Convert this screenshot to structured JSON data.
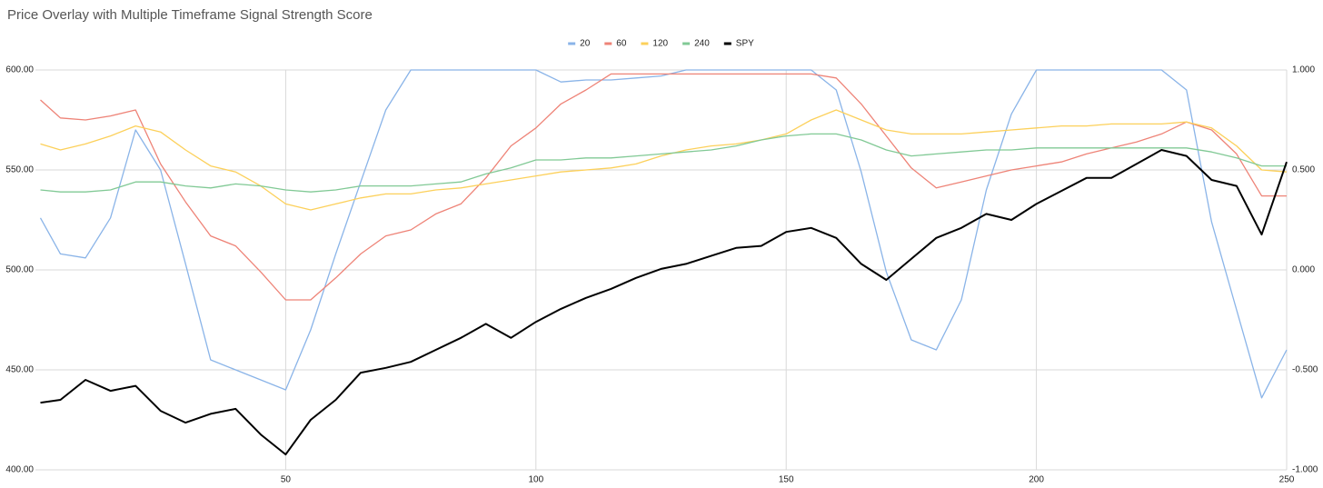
{
  "chart_data": {
    "type": "line",
    "title": "Price Overlay with Multiple Timeframe Signal Strength Score",
    "x": [
      1,
      5,
      10,
      15,
      20,
      25,
      30,
      35,
      40,
      45,
      50,
      55,
      60,
      65,
      70,
      75,
      80,
      85,
      90,
      95,
      100,
      105,
      110,
      115,
      120,
      125,
      130,
      135,
      140,
      145,
      150,
      155,
      160,
      165,
      170,
      175,
      180,
      185,
      190,
      195,
      200,
      205,
      210,
      215,
      220,
      225,
      230,
      235,
      240,
      245,
      250
    ],
    "series": [
      {
        "name": "20",
        "color": "#8ab4e8",
        "axis": "y2",
        "values": [
          0.26,
          0.08,
          0.06,
          0.26,
          0.7,
          0.5,
          0.03,
          -0.45,
          -0.5,
          -0.55,
          -0.6,
          -0.3,
          0.08,
          0.44,
          0.8,
          1,
          1,
          1,
          1,
          1,
          1,
          0.94,
          0.95,
          0.95,
          0.96,
          0.97,
          1,
          1,
          1,
          1,
          1,
          1,
          0.9,
          0.49,
          -0.01,
          -0.35,
          -0.4,
          -0.15,
          0.4,
          0.78,
          1,
          1,
          1,
          1,
          1,
          1,
          0.9,
          0.24,
          -0.2,
          -0.64,
          -0.4
        ]
      },
      {
        "name": "60",
        "color": "#ee8377",
        "axis": "y2",
        "values": [
          0.85,
          0.76,
          0.75,
          0.77,
          0.8,
          0.53,
          0.34,
          0.17,
          0.12,
          -0.01,
          -0.15,
          -0.15,
          -0.04,
          0.08,
          0.17,
          0.2,
          0.28,
          0.33,
          0.46,
          0.62,
          0.71,
          0.83,
          0.9,
          0.98,
          0.98,
          0.98,
          0.98,
          0.98,
          0.98,
          0.98,
          0.98,
          0.98,
          0.96,
          0.83,
          0.67,
          0.51,
          0.41,
          0.44,
          0.47,
          0.5,
          0.52,
          0.54,
          0.58,
          0.61,
          0.64,
          0.68,
          0.74,
          0.7,
          0.58,
          0.37,
          0.37
        ]
      },
      {
        "name": "120",
        "color": "#fcd05a",
        "axis": "y2",
        "values": [
          0.63,
          0.6,
          0.63,
          0.67,
          0.72,
          0.69,
          0.6,
          0.52,
          0.49,
          0.42,
          0.33,
          0.3,
          0.33,
          0.36,
          0.38,
          0.38,
          0.4,
          0.41,
          0.43,
          0.45,
          0.47,
          0.49,
          0.5,
          0.51,
          0.53,
          0.57,
          0.6,
          0.62,
          0.63,
          0.65,
          0.68,
          0.75,
          0.8,
          0.75,
          0.7,
          0.68,
          0.68,
          0.68,
          0.69,
          0.7,
          0.71,
          0.72,
          0.72,
          0.73,
          0.73,
          0.73,
          0.74,
          0.71,
          0.62,
          0.5,
          0.49
        ]
      },
      {
        "name": "240",
        "color": "#81c995",
        "axis": "y2",
        "values": [
          0.4,
          0.39,
          0.39,
          0.4,
          0.44,
          0.44,
          0.42,
          0.41,
          0.43,
          0.42,
          0.4,
          0.39,
          0.4,
          0.42,
          0.42,
          0.42,
          0.43,
          0.44,
          0.48,
          0.51,
          0.55,
          0.55,
          0.56,
          0.56,
          0.57,
          0.58,
          0.59,
          0.6,
          0.62,
          0.65,
          0.67,
          0.68,
          0.68,
          0.65,
          0.6,
          0.57,
          0.58,
          0.59,
          0.6,
          0.6,
          0.61,
          0.61,
          0.61,
          0.61,
          0.61,
          0.61,
          0.61,
          0.59,
          0.56,
          0.52,
          0.52
        ]
      },
      {
        "name": "SPY",
        "color": "#000000",
        "values": [
          433.6,
          435,
          445,
          439.5,
          442,
          429.5,
          423.6,
          428,
          430.5,
          417.7,
          407.7,
          425,
          435,
          448.6,
          451,
          454,
          460,
          466,
          473,
          466,
          474,
          480.5,
          486,
          490.5,
          496,
          500.5,
          503,
          507,
          511,
          512,
          519,
          521,
          516,
          503,
          495,
          505.5,
          516,
          521,
          528,
          525,
          533,
          539.5,
          546,
          546,
          553,
          560,
          557,
          545,
          542,
          517.7,
          554
        ]
      }
    ],
    "xlim": [
      0,
      250
    ],
    "xticks": [
      50,
      100,
      150,
      200,
      250
    ],
    "ylim": [
      400,
      600
    ],
    "yticks": [
      {
        "value": 400,
        "label": "400.00"
      },
      {
        "value": 450,
        "label": "450.00"
      },
      {
        "value": 500,
        "label": "500.00"
      },
      {
        "value": 550,
        "label": "550.00"
      },
      {
        "value": 600,
        "label": "600.00"
      }
    ],
    "y2lim": [
      -1,
      1
    ],
    "y2ticks": [
      {
        "value": -1,
        "label": "-1.000"
      },
      {
        "value": -0.5,
        "label": "-0.500"
      },
      {
        "value": 0,
        "label": "0.000"
      },
      {
        "value": 0.5,
        "label": "0.500"
      },
      {
        "value": 1,
        "label": "1.000"
      }
    ],
    "grid": true,
    "legend": "top"
  }
}
